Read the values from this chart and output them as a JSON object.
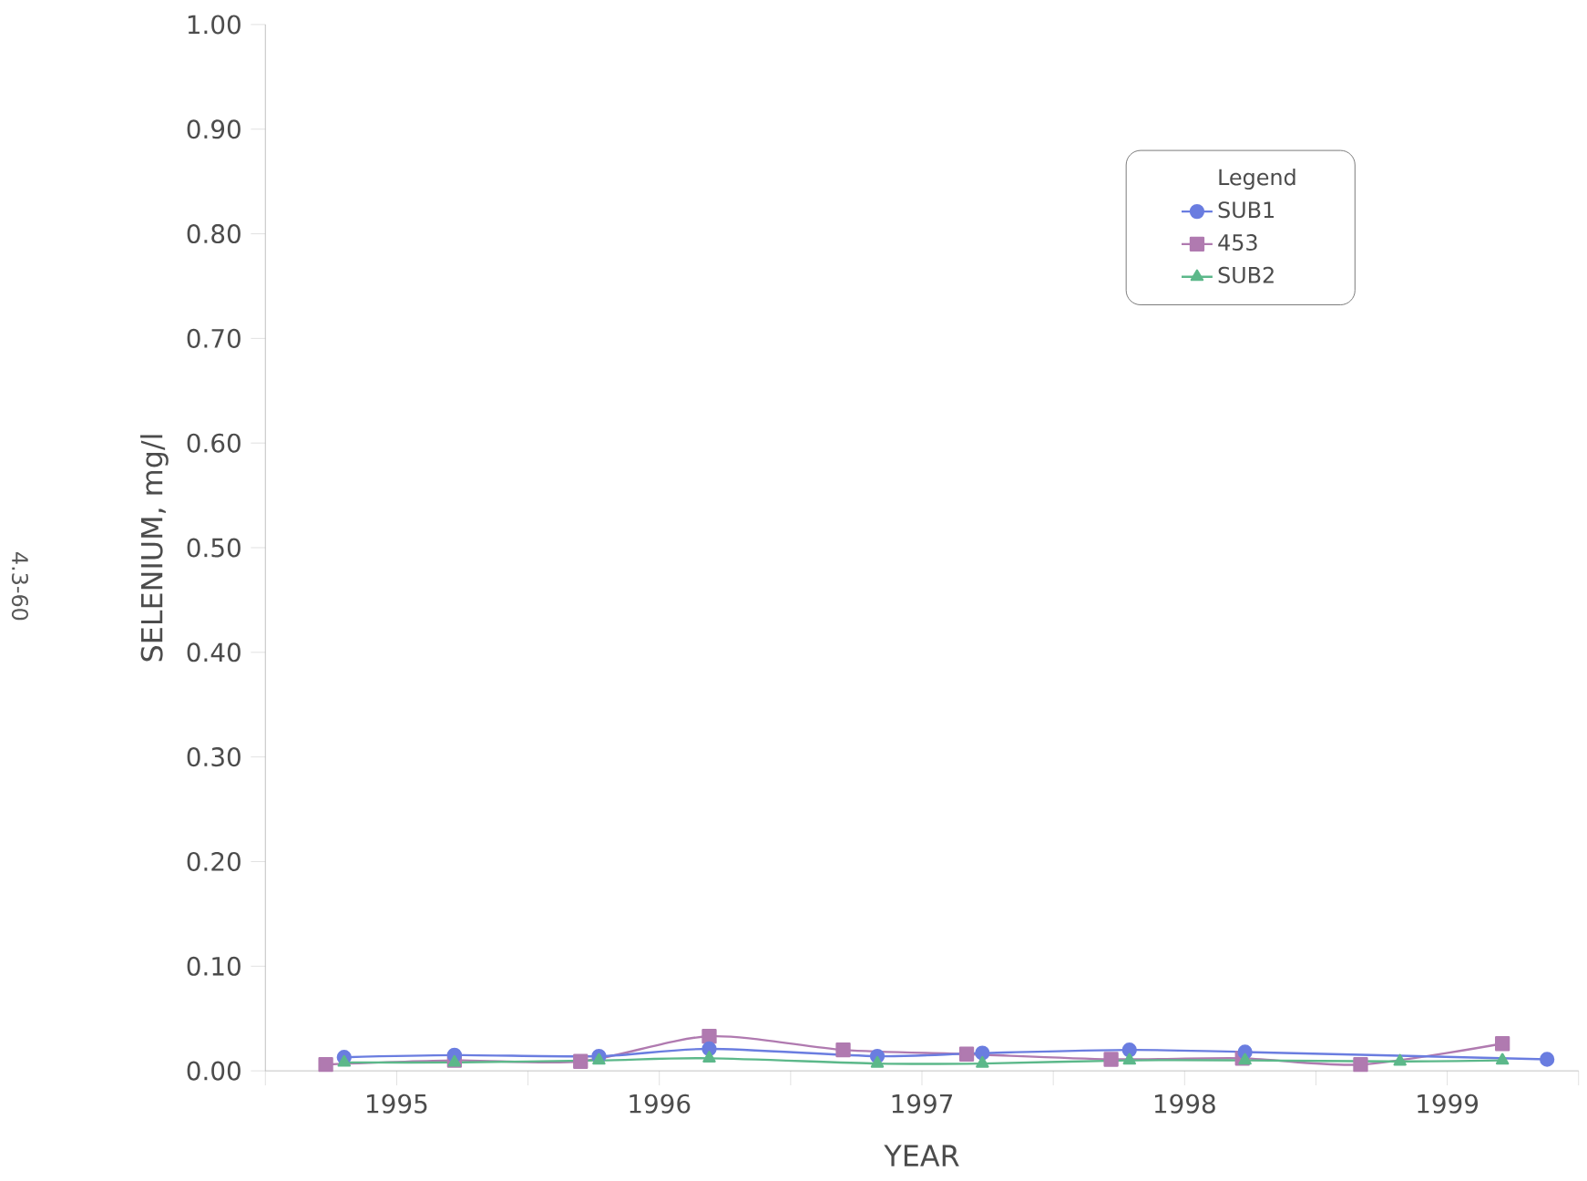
{
  "chart_data": {
    "type": "line",
    "xlabel": "YEAR",
    "ylabel": "SELENIUM, mg/l",
    "legend_title": "Legend",
    "legend": "top right",
    "annotations": [
      "4.3-60"
    ],
    "xlim": [
      1995,
      2000
    ],
    "ylim": [
      0,
      1
    ],
    "xticks": [
      {
        "value": 1995,
        "label": null
      },
      {
        "value": 1995.5,
        "label": "1995"
      },
      {
        "value": 1996,
        "label": null
      },
      {
        "value": 1996.5,
        "label": "1996"
      },
      {
        "value": 1997,
        "label": null
      },
      {
        "value": 1997.5,
        "label": "1997"
      },
      {
        "value": 1998,
        "label": null
      },
      {
        "value": 1998.5,
        "label": "1998"
      },
      {
        "value": 1999,
        "label": null
      },
      {
        "value": 1999.5,
        "label": "1999"
      },
      {
        "value": 2000,
        "label": null
      }
    ],
    "yticks": [
      {
        "value": 0,
        "label": "0.00"
      },
      {
        "value": 0.1,
        "label": "0.10"
      },
      {
        "value": 0.2,
        "label": "0.20"
      },
      {
        "value": 0.3,
        "label": "0.30"
      },
      {
        "value": 0.4,
        "label": "0.40"
      },
      {
        "value": 0.5,
        "label": "0.50"
      },
      {
        "value": 0.6,
        "label": "0.60"
      },
      {
        "value": 0.7,
        "label": "0.70"
      },
      {
        "value": 0.8,
        "label": "0.80"
      },
      {
        "value": 0.9,
        "label": "0.90"
      },
      {
        "value": 1,
        "label": "1.00"
      }
    ],
    "series": [
      {
        "name": "SUB1",
        "color": "#6a7de0",
        "marker": "circle",
        "x": [
          1995.3,
          1995.72,
          1996.27,
          1996.69,
          1997.33,
          1997.73,
          1998.29,
          1998.73,
          1999.88
        ],
        "values": [
          0.013,
          0.015,
          0.014,
          0.021,
          0.014,
          0.017,
          0.02,
          0.018,
          0.011
        ]
      },
      {
        "name": "453",
        "color": "#b07ab0",
        "marker": "square",
        "x": [
          1995.23,
          1995.72,
          1996.2,
          1996.69,
          1997.2,
          1997.67,
          1998.22,
          1998.72,
          1999.17,
          1999.71
        ],
        "values": [
          0.006,
          0.01,
          0.009,
          0.033,
          0.02,
          0.016,
          0.011,
          0.012,
          0.006,
          0.026
        ]
      },
      {
        "name": "SUB2",
        "color": "#5cb88a",
        "marker": "triangle",
        "x": [
          1995.3,
          1995.72,
          1996.27,
          1996.69,
          1997.33,
          1997.73,
          1998.29,
          1998.73,
          1999.32,
          1999.71
        ],
        "values": [
          0.008,
          0.008,
          0.01,
          0.012,
          0.007,
          0.007,
          0.01,
          0.01,
          0.009,
          0.01
        ]
      }
    ]
  }
}
